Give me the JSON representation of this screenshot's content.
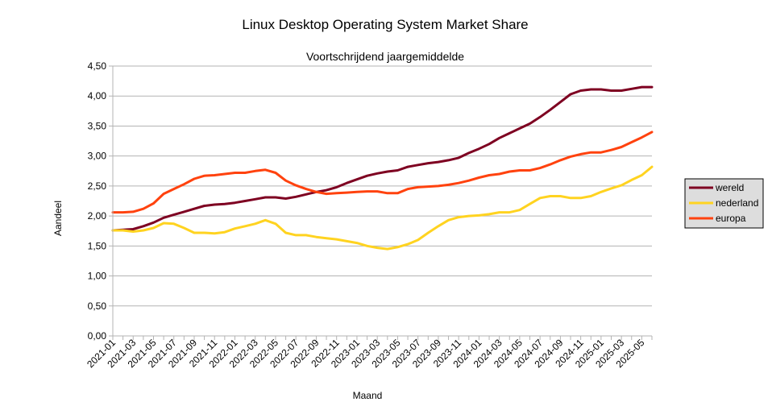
{
  "chart_data": {
    "type": "line",
    "title": "Linux Desktop Operating System Market Share",
    "subtitle": "Voortschrijdend jaargemiddelde",
    "xlabel": "Maand",
    "ylabel": "Aandeel",
    "ylim": [
      0,
      4.5
    ],
    "ytick_step": 0.5,
    "ytick_labels": [
      "0,00",
      "0,50",
      "1,00",
      "1,50",
      "2,00",
      "2,50",
      "3,00",
      "3,50",
      "4,00",
      "4,50"
    ],
    "grid": true,
    "legend_position": "right",
    "x": [
      "2021-01",
      "2021-02",
      "2021-03",
      "2021-04",
      "2021-05",
      "2021-06",
      "2021-07",
      "2021-08",
      "2021-09",
      "2021-10",
      "2021-11",
      "2021-12",
      "2022-01",
      "2022-02",
      "2022-03",
      "2022-04",
      "2022-05",
      "2022-06",
      "2022-07",
      "2022-08",
      "2022-09",
      "2022-10",
      "2022-11",
      "2022-12",
      "2023-01",
      "2023-02",
      "2023-03",
      "2023-04",
      "2023-05",
      "2023-06",
      "2023-07",
      "2023-08",
      "2023-09",
      "2023-10",
      "2023-11",
      "2023-12",
      "2024-01",
      "2024-02",
      "2024-03",
      "2024-04",
      "2024-05",
      "2024-06",
      "2024-07",
      "2024-08",
      "2024-09",
      "2024-10",
      "2024-11",
      "2024-12",
      "2025-01",
      "2025-02",
      "2025-03",
      "2025-04",
      "2025-05",
      "2025-06"
    ],
    "x_tick_labels": [
      "2021-01",
      "2021-03",
      "2021-05",
      "2021-07",
      "2021-09",
      "2021-11",
      "2022-01",
      "2022-03",
      "2022-05",
      "2022-07",
      "2022-09",
      "2022-11",
      "2023-01",
      "2023-03",
      "2023-05",
      "2023-07",
      "2023-09",
      "2023-11",
      "2024-01",
      "2024-03",
      "2024-05",
      "2024-07",
      "2024-09",
      "2024-11",
      "2025-01",
      "2025-03",
      "2025-05"
    ],
    "series": [
      {
        "name": "wereld",
        "color": "#7e0021",
        "values": [
          1.76,
          1.77,
          1.78,
          1.83,
          1.89,
          1.97,
          2.02,
          2.07,
          2.12,
          2.17,
          2.19,
          2.2,
          2.22,
          2.25,
          2.28,
          2.31,
          2.31,
          2.29,
          2.32,
          2.36,
          2.4,
          2.43,
          2.48,
          2.55,
          2.61,
          2.67,
          2.71,
          2.74,
          2.76,
          2.82,
          2.85,
          2.88,
          2.9,
          2.93,
          2.97,
          3.05,
          3.12,
          3.2,
          3.3,
          3.38,
          3.46,
          3.54,
          3.65,
          3.77,
          3.9,
          4.03,
          4.09,
          4.11,
          4.11,
          4.09,
          4.09,
          4.12,
          4.15,
          4.15
        ]
      },
      {
        "name": "nederland",
        "color": "#ffd320",
        "values": [
          1.76,
          1.76,
          1.74,
          1.76,
          1.8,
          1.88,
          1.87,
          1.8,
          1.72,
          1.72,
          1.71,
          1.73,
          1.79,
          1.83,
          1.87,
          1.93,
          1.87,
          1.72,
          1.68,
          1.68,
          1.65,
          1.63,
          1.61,
          1.58,
          1.55,
          1.5,
          1.47,
          1.45,
          1.48,
          1.53,
          1.6,
          1.72,
          1.83,
          1.93,
          1.98,
          2.0,
          2.01,
          2.03,
          2.06,
          2.06,
          2.1,
          2.2,
          2.3,
          2.33,
          2.33,
          2.3,
          2.3,
          2.33,
          2.4,
          2.46,
          2.51,
          2.6,
          2.68,
          2.82
        ]
      },
      {
        "name": "europa",
        "color": "#ff420e",
        "values": [
          2.06,
          2.06,
          2.07,
          2.12,
          2.21,
          2.37,
          2.45,
          2.53,
          2.62,
          2.67,
          2.68,
          2.7,
          2.72,
          2.72,
          2.75,
          2.77,
          2.72,
          2.59,
          2.51,
          2.45,
          2.4,
          2.37,
          2.38,
          2.39,
          2.4,
          2.41,
          2.41,
          2.38,
          2.38,
          2.45,
          2.48,
          2.49,
          2.5,
          2.52,
          2.55,
          2.59,
          2.64,
          2.68,
          2.7,
          2.74,
          2.76,
          2.76,
          2.8,
          2.86,
          2.93,
          2.99,
          3.03,
          3.06,
          3.06,
          3.1,
          3.15,
          3.23,
          3.31,
          3.4
        ]
      }
    ]
  }
}
